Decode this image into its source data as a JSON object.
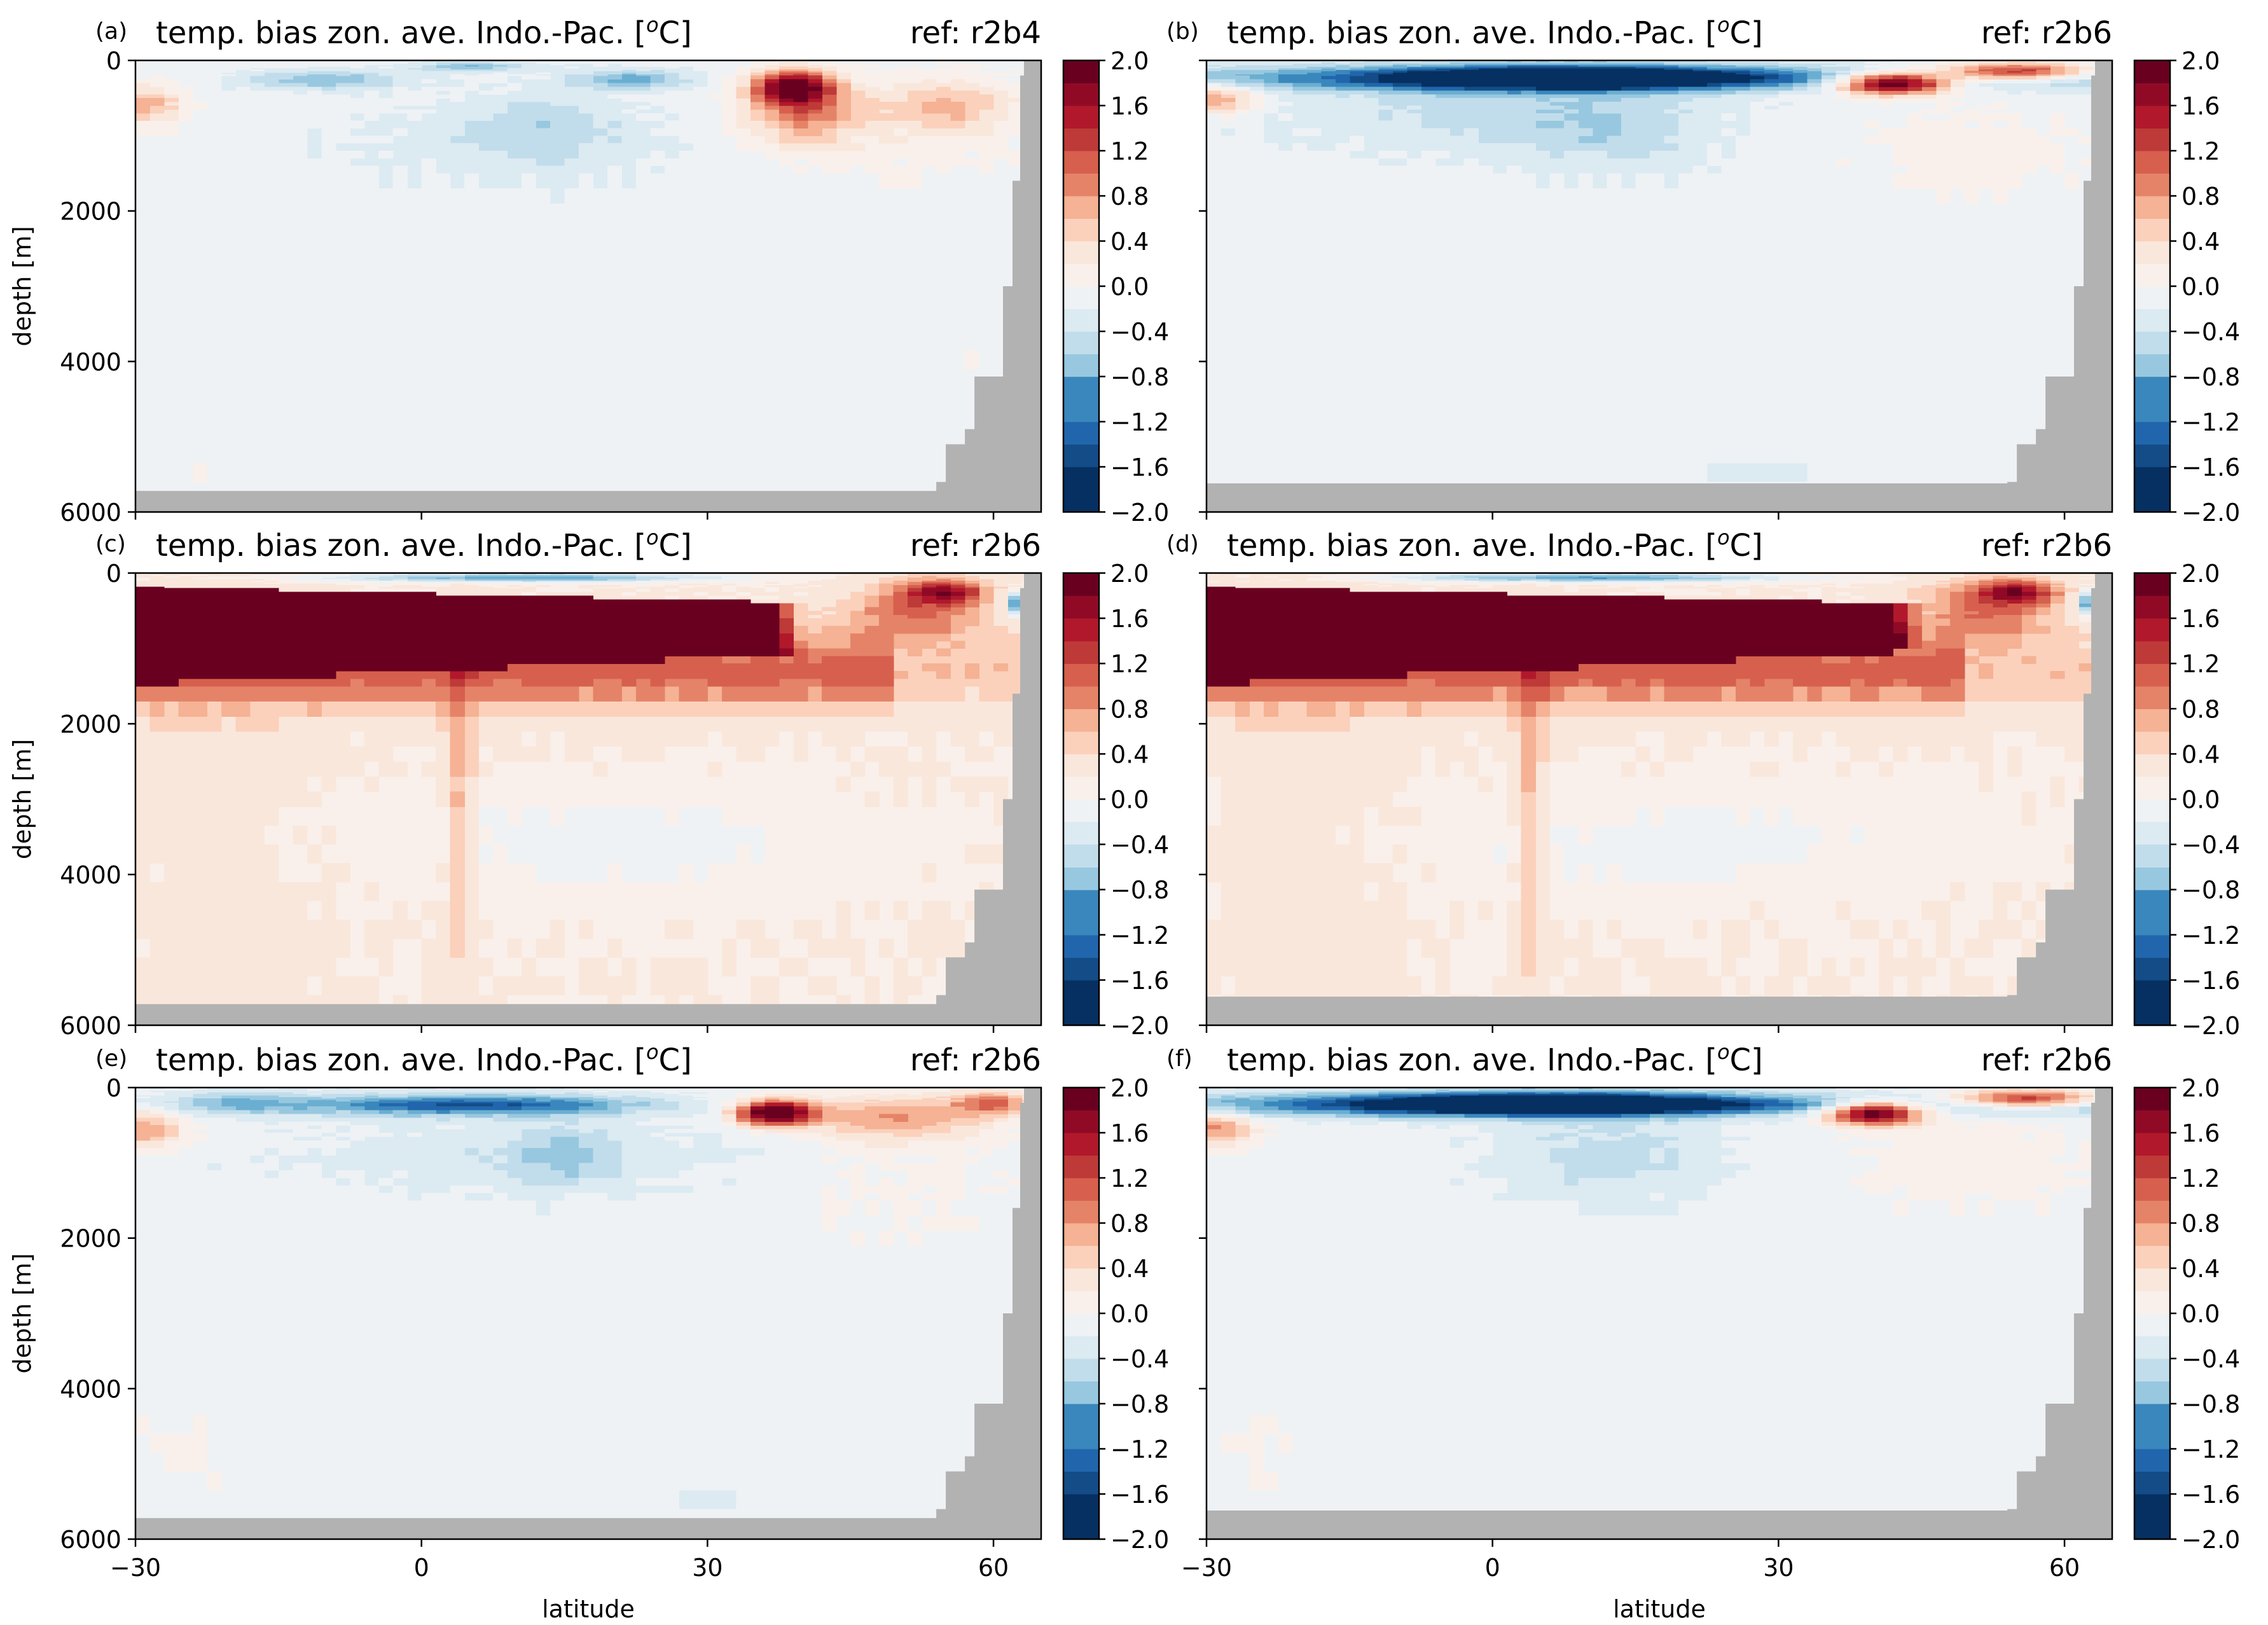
{
  "figure": {
    "panels": [
      {
        "label": "(a)",
        "title": "temp. bias zon. ave. Indo.-Pac. [",
        "unit_sup": "o",
        "unit_tail": "C]",
        "ref": "ref: r2b4",
        "pattern": "a"
      },
      {
        "label": "(b)",
        "title": "temp. bias zon. ave. Indo.-Pac. [",
        "unit_sup": "o",
        "unit_tail": "C]",
        "ref": "ref: r2b6",
        "pattern": "b"
      },
      {
        "label": "(c)",
        "title": "temp. bias zon. ave. Indo.-Pac. [",
        "unit_sup": "o",
        "unit_tail": "C]",
        "ref": "ref: r2b6",
        "pattern": "c"
      },
      {
        "label": "(d)",
        "title": "temp. bias zon. ave. Indo.-Pac. [",
        "unit_sup": "o",
        "unit_tail": "C]",
        "ref": "ref: r2b6",
        "pattern": "d"
      },
      {
        "label": "(e)",
        "title": "temp. bias zon. ave. Indo.-Pac. [",
        "unit_sup": "o",
        "unit_tail": "C]",
        "ref": "ref: r2b6",
        "pattern": "e"
      },
      {
        "label": "(f)",
        "title": "temp. bias zon. ave. Indo.-Pac. [",
        "unit_sup": "o",
        "unit_tail": "C]",
        "ref": "ref: r2b6",
        "pattern": "f"
      }
    ],
    "ylabel": "depth [m]",
    "xlabel": "latitude",
    "yticks": [
      "0",
      "2000",
      "4000",
      "6000"
    ],
    "xticks": [
      "−30",
      "0",
      "30",
      "60"
    ],
    "cbar_ticks": [
      "2.0",
      "1.6",
      "1.2",
      "0.8",
      "0.4",
      "0.0",
      "−0.4",
      "−0.8",
      "−1.2",
      "−1.6",
      "−2.0"
    ]
  },
  "chart_data": {
    "type": "heatmap",
    "xlim": [
      -30,
      65
    ],
    "ylim": [
      6000,
      0
    ],
    "xticks": [
      -30,
      0,
      30,
      60
    ],
    "yticks": [
      0,
      2000,
      4000,
      6000
    ],
    "colorbar": {
      "vmin": -2.0,
      "vmax": 2.0,
      "step": 0.2,
      "cmap": "RdBu_r",
      "ticks": [
        -2.0,
        -1.6,
        -1.2,
        -0.8,
        -0.4,
        0.0,
        0.4,
        0.8,
        1.2,
        1.6,
        2.0
      ]
    },
    "land_color": "#b2b2b2",
    "colors": [
      "#053061",
      "#134c87",
      "#2166ac",
      "#3a87bd",
      "#6aaed1",
      "#98c8e0",
      "#c1ddeb",
      "#dceaf2",
      "#eef2f5",
      "#f9f0eb",
      "#fae7dc",
      "#fbd1bc",
      "#f5b294",
      "#e58368",
      "#d6604d",
      "#bd3a38",
      "#b2182b",
      "#900a26",
      "#6a0020"
    ],
    "panels": [
      {
        "label": "(a)",
        "ref": "r2b4",
        "summary": "moderate surface cooling 0-200 m in tropics, warm patch near 35-45N at 300-600 m, weak cooling 500-2000 m"
      },
      {
        "label": "(b)",
        "ref": "r2b6",
        "summary": "strong cooling 100-500 m across -20..40N, warm band 35-60N near surface"
      },
      {
        "label": "(c)",
        "ref": "r2b6",
        "summary": "strong warming >2 C from 200 to 1300 m over -30..40N, weak warming to bottom"
      },
      {
        "label": "(d)",
        "ref": "r2b6",
        "summary": "strong warming >2 C from 200 to 1300 m over -30..45N, weak warming below"
      },
      {
        "label": "(e)",
        "ref": "r2b6",
        "summary": "cooling 100-500 m in tropics, warm patch near 37N at 400 m"
      },
      {
        "label": "(f)",
        "ref": "r2b6",
        "summary": "strong cooling 100-500 m across -20..40N, warm band 38-62N near surface"
      }
    ]
  }
}
